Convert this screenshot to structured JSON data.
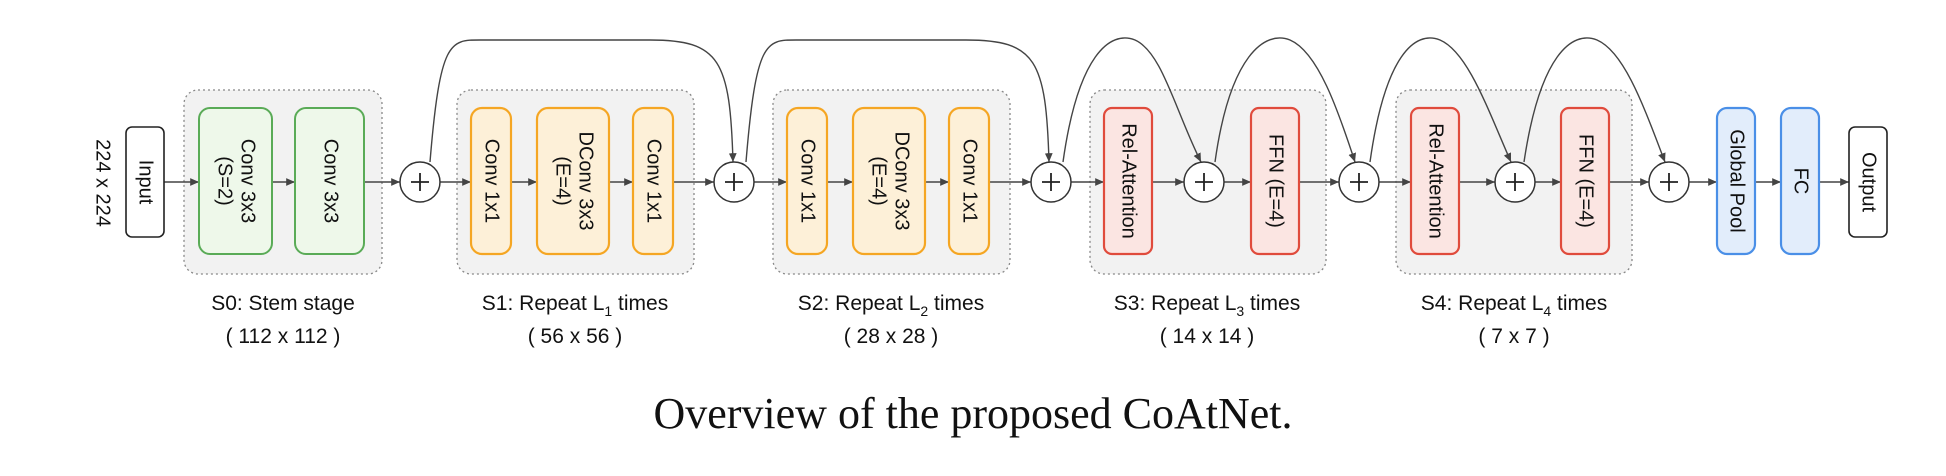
{
  "input_size": "224 x 224",
  "input": "Input",
  "output": "Output",
  "caption": "Overview of the proposed CoAtNet.",
  "colors": {
    "green_fill": "#eef8ea",
    "green_stroke": "#5aab57",
    "orange_fill": "#fdf0d8",
    "orange_stroke": "#f5a623",
    "red_fill": "#fbe5e2",
    "red_stroke": "#e04b3c",
    "blue_fill": "#e2edfb",
    "blue_stroke": "#4a8fe7"
  },
  "stages": [
    {
      "name": "S0: Stem stage",
      "size": "( 112 x 112 )",
      "blocks": [
        [
          "Conv 3x3",
          "(S=2)"
        ],
        [
          "Conv 3x3"
        ]
      ]
    },
    {
      "name_prefix": "S1: Repeat L",
      "name_sub": "1",
      "name_suffix": " times",
      "size": "( 56 x 56 )",
      "blocks": [
        [
          "Conv 1x1"
        ],
        [
          "DConv 3x3",
          "(E=4)"
        ],
        [
          "Conv 1x1"
        ]
      ]
    },
    {
      "name_prefix": "S2: Repeat L",
      "name_sub": "2",
      "name_suffix": " times",
      "size": "( 28 x 28 )",
      "blocks": [
        [
          "Conv 1x1"
        ],
        [
          "DConv 3x3",
          "(E=4)"
        ],
        [
          "Conv 1x1"
        ]
      ]
    },
    {
      "name_prefix": "S3: Repeat L",
      "name_sub": "3",
      "name_suffix": " times",
      "size": "( 14 x 14 )",
      "blocks": [
        [
          "Rel-Attention"
        ],
        [
          "FFN (E=4)"
        ]
      ]
    },
    {
      "name_prefix": "S4: Repeat L",
      "name_sub": "4",
      "name_suffix": " times",
      "size": "( 7 x 7 )",
      "blocks": [
        [
          "Rel-Attention"
        ],
        [
          "FFN (E=4)"
        ]
      ]
    }
  ],
  "head": [
    [
      "Global Pool"
    ],
    [
      "FC"
    ]
  ]
}
